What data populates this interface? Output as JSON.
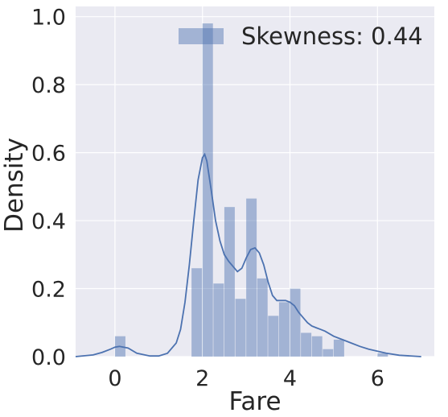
{
  "chart_data": {
    "type": "bar",
    "xlabel": "Fare",
    "ylabel": "Density",
    "xlim": [
      -0.9,
      7.3
    ],
    "ylim": [
      0,
      1.03
    ],
    "xticks": [
      0,
      2,
      4,
      6
    ],
    "yticks": [
      0.0,
      0.2,
      0.4,
      0.6,
      0.8,
      1.0
    ],
    "xtick_labels": [
      "0",
      "2",
      "4",
      "6"
    ],
    "ytick_labels": [
      "0.0",
      "0.2",
      "0.4",
      "0.6",
      "0.8",
      "1.0"
    ],
    "grid": true,
    "legend": {
      "position": "upper-right",
      "entries": [
        "Skewness: 0.44"
      ]
    },
    "colors": {
      "background": "#eaeaf2",
      "grid": "#ffffff",
      "bar": "#4c72b0",
      "bar_opacity": 0.45,
      "kde": "#4c72b0"
    },
    "histogram": {
      "bin_edges": [
        0.0,
        0.25,
        0.5,
        0.75,
        1.0,
        1.25,
        1.5,
        1.75,
        2.0,
        2.25,
        2.5,
        2.75,
        3.0,
        3.25,
        3.5,
        3.75,
        4.0,
        4.25,
        4.5,
        4.75,
        5.0,
        5.25,
        5.5,
        5.75,
        6.0,
        6.25
      ],
      "values": [
        0.06,
        0.0,
        0.0,
        0.0,
        0.0,
        0.0,
        0.0,
        0.26,
        0.98,
        0.215,
        0.44,
        0.17,
        0.465,
        0.23,
        0.12,
        0.16,
        0.2,
        0.07,
        0.06,
        0.022,
        0.05,
        0.0,
        0.0,
        0.0,
        0.01
      ]
    },
    "kde": {
      "x": [
        -0.9,
        -0.5,
        -0.3,
        -0.1,
        0.0,
        0.1,
        0.3,
        0.5,
        0.8,
        1.0,
        1.2,
        1.4,
        1.5,
        1.6,
        1.7,
        1.8,
        1.9,
        2.0,
        2.05,
        2.1,
        2.2,
        2.3,
        2.4,
        2.5,
        2.6,
        2.7,
        2.8,
        2.9,
        3.0,
        3.1,
        3.2,
        3.3,
        3.4,
        3.5,
        3.6,
        3.7,
        3.8,
        3.9,
        4.0,
        4.1,
        4.2,
        4.3,
        4.4,
        4.5,
        4.6,
        4.7,
        4.8,
        5.0,
        5.2,
        5.4,
        5.6,
        5.8,
        6.0,
        6.2,
        6.5,
        7.0
      ],
      "y": [
        0.0,
        0.005,
        0.012,
        0.022,
        0.028,
        0.03,
        0.025,
        0.01,
        0.002,
        0.002,
        0.01,
        0.04,
        0.08,
        0.16,
        0.27,
        0.4,
        0.52,
        0.585,
        0.595,
        0.575,
        0.49,
        0.4,
        0.34,
        0.3,
        0.28,
        0.265,
        0.25,
        0.26,
        0.29,
        0.315,
        0.32,
        0.305,
        0.27,
        0.22,
        0.18,
        0.165,
        0.165,
        0.165,
        0.16,
        0.15,
        0.13,
        0.115,
        0.1,
        0.09,
        0.085,
        0.08,
        0.075,
        0.06,
        0.05,
        0.04,
        0.03,
        0.022,
        0.016,
        0.01,
        0.004,
        0.0
      ]
    }
  }
}
